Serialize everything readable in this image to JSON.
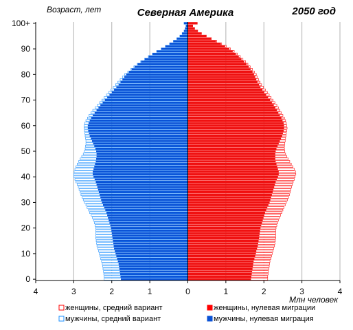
{
  "chart_data": {
    "type": "bar",
    "title": "Северная Америка",
    "year_label": "2050 год",
    "ylabel": "Возраст, лет",
    "xlabel": "Млн человек",
    "x_ticks": [
      "4",
      "3",
      "2",
      "1",
      "0",
      "1",
      "2",
      "3",
      "4"
    ],
    "y_ticks": [
      "0",
      "10",
      "20",
      "30",
      "40",
      "50",
      "60",
      "70",
      "80",
      "90",
      "100+"
    ],
    "xlim": [
      -4,
      4
    ],
    "ylim": [
      0,
      100
    ],
    "age_groups": [
      0,
      1,
      2,
      3,
      4,
      5,
      6,
      7,
      8,
      9,
      10,
      11,
      12,
      13,
      14,
      15,
      16,
      17,
      18,
      19,
      20,
      21,
      22,
      23,
      24,
      25,
      26,
      27,
      28,
      29,
      30,
      31,
      32,
      33,
      34,
      35,
      36,
      37,
      38,
      39,
      40,
      41,
      42,
      43,
      44,
      45,
      46,
      47,
      48,
      49,
      50,
      51,
      52,
      53,
      54,
      55,
      56,
      57,
      58,
      59,
      60,
      61,
      62,
      63,
      64,
      65,
      66,
      67,
      68,
      69,
      70,
      71,
      72,
      73,
      74,
      75,
      76,
      77,
      78,
      79,
      80,
      81,
      82,
      83,
      84,
      85,
      86,
      87,
      88,
      89,
      90,
      91,
      92,
      93,
      94,
      95,
      96,
      97,
      98,
      99,
      100
    ],
    "legend": [
      {
        "label": "женщины,  средний вариант",
        "color": "#ff0000",
        "filled": false
      },
      {
        "label": "женщины,  нулевая миграции",
        "color": "#ff0000",
        "filled": true
      },
      {
        "label": "мужчины, средний вариант",
        "color": "#1e90ff",
        "filled": false
      },
      {
        "label": "мужчины, нулевая миграция",
        "color": "#0a52d6",
        "filled": true
      }
    ],
    "series": [
      {
        "name": "мужчины, средний вариант",
        "side": "left",
        "filled": false,
        "color": "#1e90ff",
        "values": [
          2.2,
          2.2,
          2.21,
          2.22,
          2.23,
          2.24,
          2.25,
          2.27,
          2.29,
          2.31,
          2.33,
          2.35,
          2.37,
          2.39,
          2.4,
          2.41,
          2.42,
          2.42,
          2.42,
          2.42,
          2.42,
          2.44,
          2.46,
          2.48,
          2.51,
          2.54,
          2.58,
          2.61,
          2.65,
          2.68,
          2.72,
          2.75,
          2.78,
          2.81,
          2.83,
          2.86,
          2.88,
          2.91,
          2.94,
          2.97,
          3.0,
          3.0,
          2.99,
          2.97,
          2.94,
          2.91,
          2.87,
          2.83,
          2.79,
          2.75,
          2.72,
          2.7,
          2.69,
          2.68,
          2.68,
          2.69,
          2.7,
          2.71,
          2.72,
          2.73,
          2.73,
          2.71,
          2.68,
          2.64,
          2.6,
          2.55,
          2.5,
          2.44,
          2.38,
          2.32,
          2.26,
          2.2,
          2.14,
          2.08,
          2.02,
          1.96,
          1.9,
          1.84,
          1.78,
          1.72,
          1.66,
          1.58,
          1.5,
          1.42,
          1.33,
          1.24,
          1.14,
          1.04,
          0.93,
          0.82,
          0.7,
          0.59,
          0.48,
          0.38,
          0.29,
          0.21,
          0.15,
          0.1,
          0.07,
          0.05,
          0.1
        ]
      },
      {
        "name": "мужчины, нулевая миграция",
        "side": "left",
        "filled": true,
        "color": "#0a52d6",
        "values": [
          1.76,
          1.77,
          1.78,
          1.79,
          1.8,
          1.81,
          1.82,
          1.84,
          1.86,
          1.88,
          1.9,
          1.92,
          1.94,
          1.95,
          1.96,
          1.97,
          1.98,
          1.99,
          2.0,
          2.01,
          2.02,
          2.04,
          2.06,
          2.08,
          2.1,
          2.12,
          2.14,
          2.17,
          2.2,
          2.23,
          2.26,
          2.28,
          2.3,
          2.32,
          2.34,
          2.36,
          2.38,
          2.4,
          2.42,
          2.45,
          2.48,
          2.5,
          2.5,
          2.48,
          2.46,
          2.44,
          2.42,
          2.41,
          2.4,
          2.4,
          2.41,
          2.43,
          2.46,
          2.49,
          2.52,
          2.55,
          2.58,
          2.6,
          2.62,
          2.63,
          2.63,
          2.61,
          2.58,
          2.54,
          2.5,
          2.45,
          2.4,
          2.35,
          2.3,
          2.24,
          2.18,
          2.12,
          2.06,
          2.0,
          1.94,
          1.88,
          1.82,
          1.77,
          1.72,
          1.67,
          1.62,
          1.55,
          1.48,
          1.4,
          1.32,
          1.23,
          1.13,
          1.03,
          0.93,
          0.82,
          0.7,
          0.59,
          0.48,
          0.38,
          0.29,
          0.21,
          0.15,
          0.1,
          0.07,
          0.05,
          0.1
        ]
      },
      {
        "name": "женщины,  средний вариант",
        "side": "right",
        "filled": false,
        "color": "#ff0000",
        "values": [
          2.1,
          2.1,
          2.11,
          2.12,
          2.13,
          2.14,
          2.15,
          2.16,
          2.18,
          2.2,
          2.22,
          2.24,
          2.26,
          2.28,
          2.29,
          2.3,
          2.31,
          2.31,
          2.31,
          2.31,
          2.32,
          2.34,
          2.36,
          2.38,
          2.41,
          2.44,
          2.47,
          2.5,
          2.53,
          2.56,
          2.59,
          2.62,
          2.65,
          2.67,
          2.69,
          2.71,
          2.73,
          2.75,
          2.77,
          2.8,
          2.82,
          2.84,
          2.83,
          2.8,
          2.76,
          2.72,
          2.68,
          2.64,
          2.6,
          2.57,
          2.55,
          2.54,
          2.54,
          2.55,
          2.56,
          2.57,
          2.58,
          2.59,
          2.6,
          2.61,
          2.6,
          2.59,
          2.57,
          2.54,
          2.5,
          2.46,
          2.42,
          2.38,
          2.34,
          2.29,
          2.24,
          2.19,
          2.14,
          2.09,
          2.04,
          1.99,
          1.94,
          1.9,
          1.86,
          1.83,
          1.8,
          1.75,
          1.7,
          1.64,
          1.58,
          1.52,
          1.45,
          1.38,
          1.3,
          1.22,
          1.12,
          1.01,
          0.89,
          0.76,
          0.62,
          0.49,
          0.36,
          0.26,
          0.18,
          0.13,
          0.25
        ]
      },
      {
        "name": "женщины,  нулевая миграции",
        "side": "right",
        "filled": true,
        "color": "#ee1111",
        "values": [
          1.66,
          1.67,
          1.68,
          1.69,
          1.7,
          1.71,
          1.72,
          1.73,
          1.75,
          1.77,
          1.79,
          1.8,
          1.82,
          1.84,
          1.85,
          1.86,
          1.87,
          1.88,
          1.89,
          1.9,
          1.91,
          1.93,
          1.95,
          1.97,
          1.99,
          2.01,
          2.03,
          2.06,
          2.09,
          2.12,
          2.15,
          2.17,
          2.19,
          2.21,
          2.23,
          2.25,
          2.27,
          2.29,
          2.31,
          2.34,
          2.37,
          2.39,
          2.39,
          2.37,
          2.35,
          2.33,
          2.31,
          2.3,
          2.3,
          2.3,
          2.31,
          2.33,
          2.36,
          2.39,
          2.42,
          2.45,
          2.48,
          2.5,
          2.52,
          2.53,
          2.53,
          2.52,
          2.49,
          2.46,
          2.42,
          2.38,
          2.34,
          2.3,
          2.26,
          2.21,
          2.16,
          2.11,
          2.06,
          2.01,
          1.96,
          1.91,
          1.87,
          1.83,
          1.8,
          1.77,
          1.74,
          1.7,
          1.65,
          1.6,
          1.54,
          1.48,
          1.41,
          1.34,
          1.26,
          1.18,
          1.09,
          0.98,
          0.87,
          0.74,
          0.61,
          0.48,
          0.36,
          0.26,
          0.18,
          0.13,
          0.25
        ]
      }
    ]
  }
}
